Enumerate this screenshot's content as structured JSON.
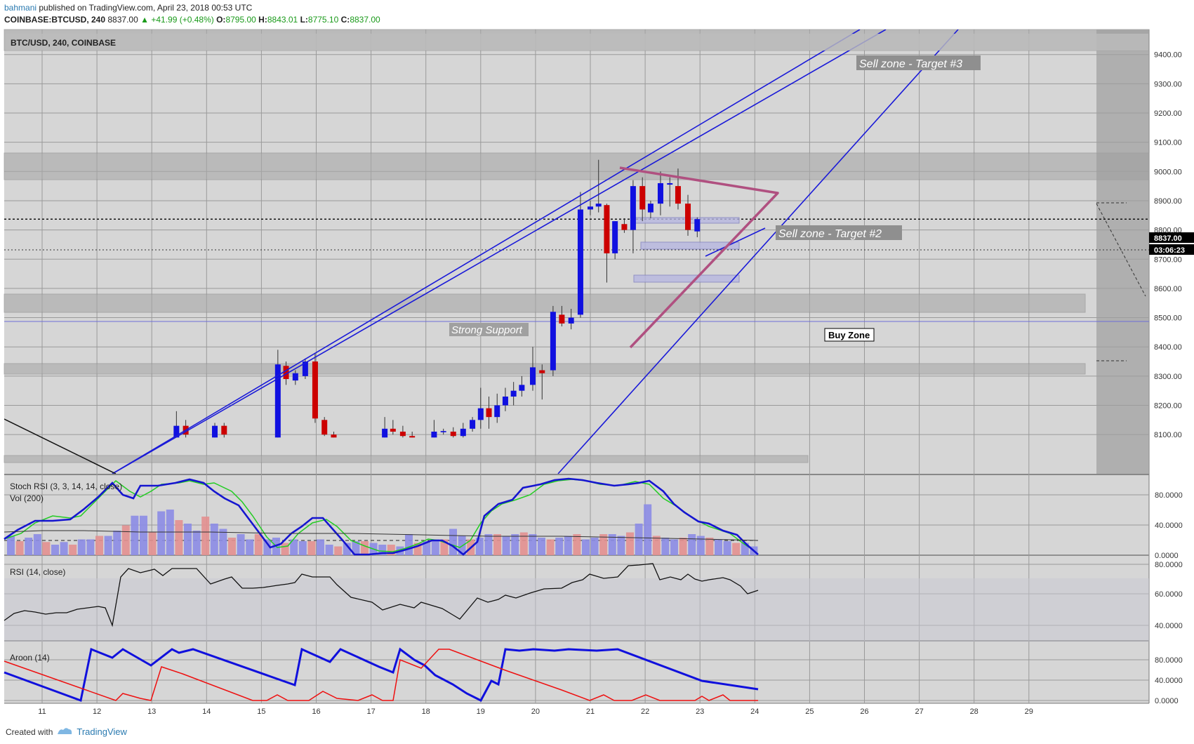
{
  "header": {
    "author": "bahmani",
    "published": "published on TradingView.com, April 23, 2018 00:53 UTC",
    "symbol": "COINBASE:BTCUSD, 240",
    "last": "8837.00",
    "change": "+41.99 (+0.48%)",
    "o_label": "O:",
    "o": "8795.00",
    "h_label": "H:",
    "h": "8843.01",
    "l_label": "L:",
    "l": "8775.10",
    "c_label": "C:",
    "c": "8837.00"
  },
  "chart_title": "BTC/USD, 240, COINBASE",
  "price_tag": "8837.00",
  "countdown_tag": "03:06:23",
  "annotations": {
    "sell3": "Sell zone - Target #3",
    "sell2": "Sell zone - Target #2",
    "support": "Strong Support",
    "buy": "Buy Zone"
  },
  "panes": {
    "stoch": "Stoch RSI (3, 3, 14, 14, close)",
    "vol": "Vol (200)",
    "rsi": "RSI (14, close)",
    "aroon": "Aroon (14)"
  },
  "footer": {
    "created": "Created with",
    "brand": "TradingView"
  },
  "colors": {
    "bull": "#1010e0",
    "bear": "#cc0000",
    "channel": "#1a1ad8",
    "pennant": "#b05080",
    "stoch_k": "#1515d0",
    "stoch_d": "#22cc22"
  },
  "chart_data": {
    "type": "candlestick",
    "title": "BTC/USD, 240, COINBASE",
    "x_tick_labels": [
      "11",
      "12",
      "13",
      "14",
      "15",
      "16",
      "17",
      "18",
      "19",
      "20",
      "21",
      "22",
      "23",
      "24",
      "25",
      "26",
      "27",
      "28",
      "29"
    ],
    "price_axis_labels": [
      "9400.00",
      "9300.00",
      "9200.00",
      "9100.00",
      "9000.00",
      "8900.00",
      "8800.00",
      "8700.00",
      "8600.00",
      "8500.00",
      "8400.00",
      "8300.00",
      "8200.00",
      "8100.00"
    ],
    "price_range": [
      8090,
      9480
    ],
    "candles": [
      {
        "t": 13.45,
        "o": 8090,
        "h": 8180,
        "l": 8090,
        "c": 8130
      },
      {
        "t": 13.62,
        "o": 8130,
        "h": 8150,
        "l": 8090,
        "c": 8100
      },
      {
        "t": 14.15,
        "o": 8090,
        "h": 8140,
        "l": 8090,
        "c": 8130
      },
      {
        "t": 14.32,
        "o": 8130,
        "h": 8140,
        "l": 8090,
        "c": 8100
      },
      {
        "t": 15.3,
        "o": 8090,
        "h": 8390,
        "l": 8090,
        "c": 8340
      },
      {
        "t": 15.45,
        "o": 8335,
        "h": 8350,
        "l": 8270,
        "c": 8290
      },
      {
        "t": 15.62,
        "o": 8285,
        "h": 8320,
        "l": 8270,
        "c": 8310
      },
      {
        "t": 15.8,
        "o": 8300,
        "h": 8360,
        "l": 8290,
        "c": 8350
      },
      {
        "t": 15.98,
        "o": 8350,
        "h": 8380,
        "l": 8140,
        "c": 8155
      },
      {
        "t": 16.15,
        "o": 8150,
        "h": 8160,
        "l": 8095,
        "c": 8100
      },
      {
        "t": 16.32,
        "o": 8100,
        "h": 8110,
        "l": 8090,
        "c": 8090
      },
      {
        "t": 17.25,
        "o": 8090,
        "h": 8160,
        "l": 8090,
        "c": 8120
      },
      {
        "t": 17.4,
        "o": 8120,
        "h": 8150,
        "l": 8100,
        "c": 8110
      },
      {
        "t": 17.58,
        "o": 8110,
        "h": 8130,
        "l": 8090,
        "c": 8095
      },
      {
        "t": 17.75,
        "o": 8095,
        "h": 8110,
        "l": 8090,
        "c": 8090
      },
      {
        "t": 18.15,
        "o": 8090,
        "h": 8150,
        "l": 8090,
        "c": 8110
      },
      {
        "t": 18.32,
        "o": 8108,
        "h": 8120,
        "l": 8100,
        "c": 8112
      },
      {
        "t": 18.5,
        "o": 8110,
        "h": 8125,
        "l": 8090,
        "c": 8095
      },
      {
        "t": 18.68,
        "o": 8095,
        "h": 8140,
        "l": 8090,
        "c": 8120
      },
      {
        "t": 18.85,
        "o": 8120,
        "h": 8160,
        "l": 8110,
        "c": 8150
      },
      {
        "t": 19.0,
        "o": 8150,
        "h": 8260,
        "l": 8120,
        "c": 8190
      },
      {
        "t": 19.15,
        "o": 8190,
        "h": 8230,
        "l": 8120,
        "c": 8160
      },
      {
        "t": 19.3,
        "o": 8160,
        "h": 8240,
        "l": 8140,
        "c": 8200
      },
      {
        "t": 19.45,
        "o": 8200,
        "h": 8260,
        "l": 8180,
        "c": 8230
      },
      {
        "t": 19.6,
        "o": 8230,
        "h": 8280,
        "l": 8200,
        "c": 8250
      },
      {
        "t": 19.75,
        "o": 8250,
        "h": 8300,
        "l": 8230,
        "c": 8270
      },
      {
        "t": 19.95,
        "o": 8270,
        "h": 8400,
        "l": 8250,
        "c": 8330
      },
      {
        "t": 20.12,
        "o": 8320,
        "h": 8340,
        "l": 8220,
        "c": 8310
      },
      {
        "t": 20.32,
        "o": 8320,
        "h": 8540,
        "l": 8300,
        "c": 8520
      },
      {
        "t": 20.48,
        "o": 8510,
        "h": 8540,
        "l": 8470,
        "c": 8480
      },
      {
        "t": 20.65,
        "o": 8480,
        "h": 8530,
        "l": 8460,
        "c": 8500
      },
      {
        "t": 20.82,
        "o": 8510,
        "h": 8930,
        "l": 8500,
        "c": 8870
      },
      {
        "t": 21.0,
        "o": 8870,
        "h": 8900,
        "l": 8850,
        "c": 8880
      },
      {
        "t": 21.15,
        "o": 8880,
        "h": 9040,
        "l": 8860,
        "c": 8890
      },
      {
        "t": 21.3,
        "o": 8885,
        "h": 8890,
        "l": 8620,
        "c": 8720
      },
      {
        "t": 21.45,
        "o": 8720,
        "h": 8830,
        "l": 8700,
        "c": 8830
      },
      {
        "t": 21.62,
        "o": 8820,
        "h": 8840,
        "l": 8790,
        "c": 8800
      },
      {
        "t": 21.78,
        "o": 8800,
        "h": 8970,
        "l": 8720,
        "c": 8950
      },
      {
        "t": 21.95,
        "o": 8950,
        "h": 8980,
        "l": 8830,
        "c": 8870
      },
      {
        "t": 22.1,
        "o": 8860,
        "h": 8900,
        "l": 8840,
        "c": 8890
      },
      {
        "t": 22.28,
        "o": 8890,
        "h": 9000,
        "l": 8850,
        "c": 8960
      },
      {
        "t": 22.45,
        "o": 8955,
        "h": 8980,
        "l": 8880,
        "c": 8960
      },
      {
        "t": 22.6,
        "o": 8950,
        "h": 9010,
        "l": 8870,
        "c": 8890
      },
      {
        "t": 22.78,
        "o": 8890,
        "h": 8920,
        "l": 8780,
        "c": 8800
      },
      {
        "t": 22.95,
        "o": 8795,
        "h": 8843.01,
        "l": 8775.1,
        "c": 8837
      }
    ]
  }
}
